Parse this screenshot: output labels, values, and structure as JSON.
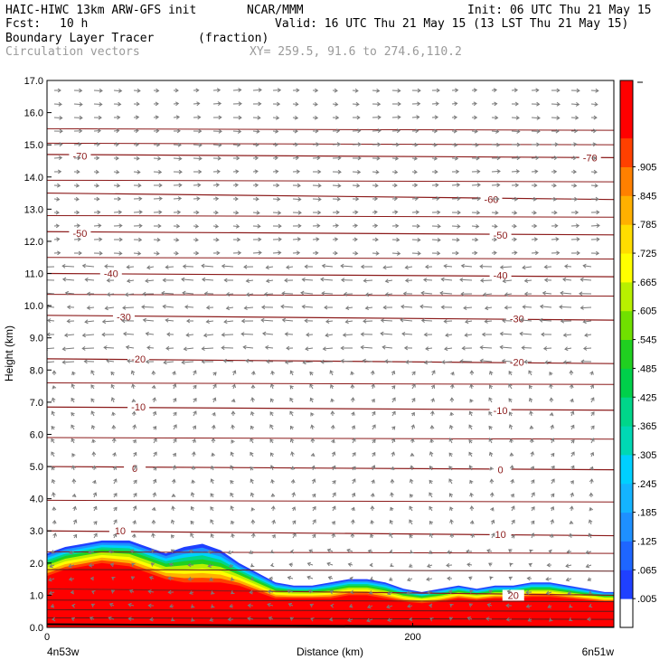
{
  "header": {
    "model": "HAIC-HIWC 13km ARW-GFS init",
    "org": "NCAR/MMM",
    "init": "Init: 06 UTC Thu 21 May 15",
    "fcst_label": "Fcst:",
    "fcst_value": "10 h",
    "valid": "Valid: 16 UTC Thu 21 May 15 (13 LST Thu 21 May 15)",
    "field_name": "Boundary Layer Tracer",
    "field_units": "(fraction)",
    "vector_name": "Circulation vectors",
    "xy_range": "XY= 259.5, 91.6 to 274.6,110.2"
  },
  "colors": {
    "contour": "#8b1a1a",
    "vector": "#7a7a7a",
    "colorbar": [
      "#ffffff",
      "#1f40ff",
      "#1e66ff",
      "#1e90ff",
      "#14b4ff",
      "#00d0ff",
      "#00d8b4",
      "#00d68a",
      "#00d04a",
      "#20d020",
      "#70e000",
      "#b8f000",
      "#ffff00",
      "#ffdd00",
      "#ffb000",
      "#ff8000",
      "#ff4000",
      "#ff0000",
      "#ff0000"
    ]
  },
  "chart_data": {
    "type": "heatmap",
    "xlabel": "Distance (km)",
    "ylabel": "Height (km)",
    "xlim": [
      0,
      310
    ],
    "ylim": [
      0,
      17
    ],
    "x_ticks": [
      0,
      200
    ],
    "x_tick_labels": [
      "0",
      "200"
    ],
    "x_end_labels": [
      "4n53w",
      "6n51w"
    ],
    "y_ticks": [
      0,
      1,
      2,
      3,
      4,
      5,
      6,
      7,
      8,
      9,
      10,
      11,
      12,
      13,
      14,
      15,
      16,
      17
    ],
    "y_tick_labels": [
      "0.0",
      "1.0",
      "2.0",
      "3.0",
      "4.0",
      "5.0",
      "6.0",
      "7.0",
      "8.0",
      "9.0",
      "10.0",
      "11.0",
      "12.0",
      "13.0",
      "14.0",
      "15.0",
      "16.0",
      "17.0"
    ],
    "colorbar_labels": [
      ".005",
      ".065",
      ".125",
      ".185",
      ".245",
      ".305",
      ".365",
      ".425",
      ".485",
      ".545",
      ".605",
      ".665",
      ".725",
      ".785",
      ".845",
      ".905"
    ],
    "tracer_top_km": {
      "x": [
        0,
        10,
        20,
        30,
        45,
        55,
        65,
        75,
        85,
        95,
        105,
        115,
        125,
        135,
        145,
        155,
        165,
        175,
        185,
        195,
        205,
        215,
        225,
        235,
        245,
        255,
        265,
        275,
        285,
        295,
        305,
        310
      ],
      "top": [
        2.3,
        2.5,
        2.6,
        2.7,
        2.7,
        2.5,
        2.3,
        2.5,
        2.6,
        2.4,
        2.0,
        1.7,
        1.4,
        1.3,
        1.3,
        1.4,
        1.5,
        1.5,
        1.4,
        1.2,
        1.1,
        1.2,
        1.3,
        1.2,
        1.3,
        1.3,
        1.4,
        1.4,
        1.3,
        1.2,
        1.1,
        1.1
      ],
      "core_top": [
        1.6,
        1.8,
        1.9,
        2.0,
        1.9,
        1.7,
        1.5,
        1.4,
        1.4,
        1.4,
        1.3,
        1.1,
        0.9,
        0.9,
        0.9,
        0.9,
        1.0,
        1.0,
        0.9,
        0.8,
        0.75,
        0.8,
        0.9,
        0.85,
        0.9,
        0.9,
        0.95,
        0.95,
        0.9,
        0.85,
        0.8,
        0.8
      ]
    },
    "temperature_contours": [
      {
        "value": 20,
        "label": "20",
        "heights": [
          1.2,
          1.0
        ],
        "labels_at": [
          [
            255,
            1.0
          ]
        ]
      },
      {
        "value": 10,
        "label": "10",
        "heights": [
          3.0,
          2.85
        ],
        "labels_at": [
          [
            40,
            3.0
          ],
          [
            248,
            2.9
          ]
        ]
      },
      {
        "value": 0,
        "label": "0",
        "heights": [
          5.0,
          4.9
        ],
        "labels_at": [
          [
            48,
            4.95
          ],
          [
            248,
            4.9
          ]
        ]
      },
      {
        "value": -10,
        "label": "-10",
        "heights": [
          6.85,
          6.75
        ],
        "labels_at": [
          [
            50,
            6.85
          ],
          [
            248,
            6.75
          ]
        ]
      },
      {
        "value": -20,
        "label": "-20",
        "heights": [
          8.35,
          8.2
        ],
        "labels_at": [
          [
            50,
            8.35
          ],
          [
            257,
            8.25
          ]
        ]
      },
      {
        "value": -30,
        "label": "-30",
        "heights": [
          9.7,
          9.55
        ],
        "labels_at": [
          [
            42,
            9.65
          ],
          [
            257,
            9.6
          ]
        ]
      },
      {
        "value": -40,
        "label": "-40",
        "heights": [
          11.0,
          10.9
        ],
        "labels_at": [
          [
            35,
            11.0
          ],
          [
            248,
            10.95
          ]
        ]
      },
      {
        "value": -50,
        "label": "-50",
        "heights": [
          12.3,
          12.2
        ],
        "labels_at": [
          [
            18,
            12.25
          ],
          [
            248,
            12.2
          ]
        ]
      },
      {
        "value": -60,
        "label": "-60",
        "heights": [
          13.5,
          13.3
        ],
        "labels_at": [
          [
            243,
            13.3
          ]
        ]
      },
      {
        "value": -70,
        "label": "-70",
        "heights": [
          14.7,
          14.6
        ],
        "labels_at": [
          [
            18,
            14.65
          ],
          [
            297,
            14.6
          ]
        ]
      }
    ],
    "extra_contour_heights_km": [
      0.3,
      0.55,
      0.85,
      1.8,
      2.35,
      3.95,
      5.9,
      7.6,
      10.35,
      11.5,
      12.8,
      13.9,
      15.05,
      15.5
    ]
  }
}
